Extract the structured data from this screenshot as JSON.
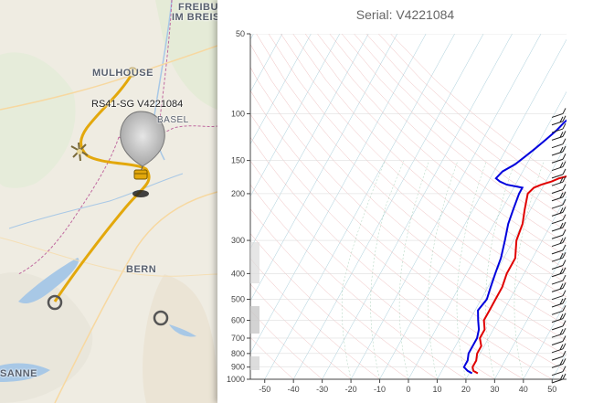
{
  "map": {
    "cities": [
      {
        "id": "freiburg",
        "label": "FREIBU"
      },
      {
        "id": "freiburg2",
        "label": "IM BREIS"
      },
      {
        "id": "mulhouse",
        "label": "MULHOUSE"
      },
      {
        "id": "basel",
        "label": "BASEL"
      },
      {
        "id": "bern",
        "label": "BERN"
      },
      {
        "id": "lausanne",
        "label": "SANNE"
      }
    ],
    "balloon_label": "RS41-SG V4221084",
    "colors": {
      "track": "#e3a80c",
      "lake": "#a8c8e6",
      "border": "#c06aa0",
      "marker": "#555555"
    }
  },
  "panel": {
    "title": "Serial: V4221084"
  },
  "chart_data": {
    "type": "line",
    "title": "Serial: V4221084",
    "xlabel": "",
    "ylabel": "",
    "y_scale": "log",
    "xlim": [
      -55,
      55
    ],
    "ylim": [
      1000,
      50
    ],
    "x_ticks": [
      -50,
      -40,
      -30,
      -20,
      -10,
      0,
      10,
      20,
      30,
      40,
      50
    ],
    "y_ticks": [
      50,
      100,
      150,
      200,
      300,
      400,
      500,
      600,
      700,
      800,
      900,
      1000
    ],
    "series": [
      {
        "role": "temperature",
        "color": "#e00000",
        "points": [
          [
            23,
            950
          ],
          [
            21,
            930
          ],
          [
            20,
            900
          ],
          [
            20,
            850
          ],
          [
            19,
            800
          ],
          [
            19,
            750
          ],
          [
            17,
            700
          ],
          [
            17,
            650
          ],
          [
            15,
            600
          ],
          [
            15,
            550
          ],
          [
            15,
            500
          ],
          [
            15,
            450
          ],
          [
            14,
            400
          ],
          [
            14,
            350
          ],
          [
            11,
            300
          ],
          [
            10,
            260
          ],
          [
            8,
            230
          ],
          [
            6,
            200
          ],
          [
            7,
            190
          ],
          [
            9,
            185
          ],
          [
            12,
            180
          ],
          [
            14,
            175
          ],
          [
            18,
            170
          ],
          [
            20,
            165
          ],
          [
            23,
            160
          ],
          [
            25,
            150
          ],
          [
            26,
            140
          ],
          [
            27,
            130
          ],
          [
            29,
            120
          ],
          [
            30,
            115
          ],
          [
            31,
            110
          ],
          [
            33,
            105
          ],
          [
            34,
            100
          ]
        ]
      },
      {
        "role": "dewpoint",
        "color": "#0000dd",
        "points": [
          [
            21,
            950
          ],
          [
            19,
            930
          ],
          [
            17,
            900
          ],
          [
            17,
            850
          ],
          [
            16,
            800
          ],
          [
            16,
            750
          ],
          [
            16,
            700
          ],
          [
            15,
            650
          ],
          [
            13,
            600
          ],
          [
            11,
            550
          ],
          [
            12,
            500
          ],
          [
            11,
            450
          ],
          [
            10,
            400
          ],
          [
            9,
            350
          ],
          [
            7,
            300
          ],
          [
            5,
            260
          ],
          [
            4,
            230
          ],
          [
            3,
            200
          ],
          [
            3,
            190
          ],
          [
            -3,
            185
          ],
          [
            -6,
            180
          ],
          [
            -8,
            175
          ],
          [
            -7,
            165
          ],
          [
            -4,
            155
          ],
          [
            -2,
            145
          ],
          [
            0,
            135
          ],
          [
            2,
            125
          ],
          [
            4,
            115
          ],
          [
            5,
            108
          ],
          [
            7,
            100
          ]
        ]
      }
    ],
    "wind_barbs_count": 36,
    "grid": true
  }
}
